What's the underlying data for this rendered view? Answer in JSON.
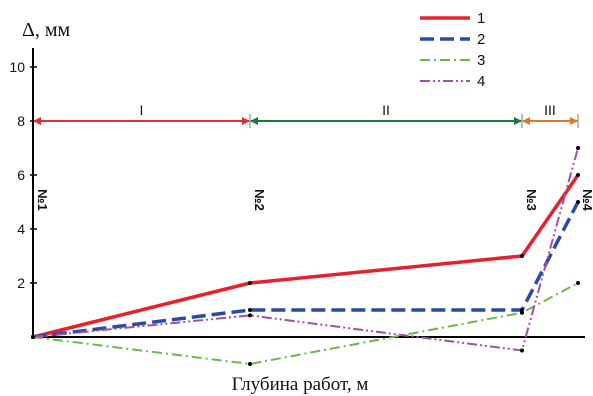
{
  "chart_data": {
    "type": "line",
    "ylabel": "Δ, мм",
    "xlabel": "Глубина работ, м",
    "ylim": [
      -1,
      10
    ],
    "yticks": [
      "2",
      "4",
      "6",
      "8",
      "10"
    ],
    "grid": false,
    "legend_position": "top-right",
    "stations": [
      "№1",
      "№2",
      "№3",
      "№4"
    ],
    "zones": [
      {
        "label": "I",
        "from": "№1",
        "to": "№2",
        "color": "#e03030"
      },
      {
        "label": "II",
        "from": "№2",
        "to": "№3",
        "color": "#1a7a3a"
      },
      {
        "label": "III",
        "from": "№3",
        "to": "№4",
        "color": "#e07a20"
      }
    ],
    "zones_level": 8,
    "series": [
      {
        "name": "1",
        "color": "#e8202a",
        "dash": "solid",
        "values": [
          0,
          2,
          3,
          6
        ]
      },
      {
        "name": "2",
        "color": "#2a4aa8",
        "dash": "dash",
        "values": [
          0,
          1,
          1,
          5
        ]
      },
      {
        "name": "3",
        "color": "#6ab84a",
        "dash": "dashdot",
        "values": [
          0,
          -1,
          0.9,
          2
        ]
      },
      {
        "name": "4",
        "color": "#a050a8",
        "dash": "dashdotdot",
        "values": [
          0,
          0.8,
          -0.5,
          7
        ]
      }
    ]
  }
}
